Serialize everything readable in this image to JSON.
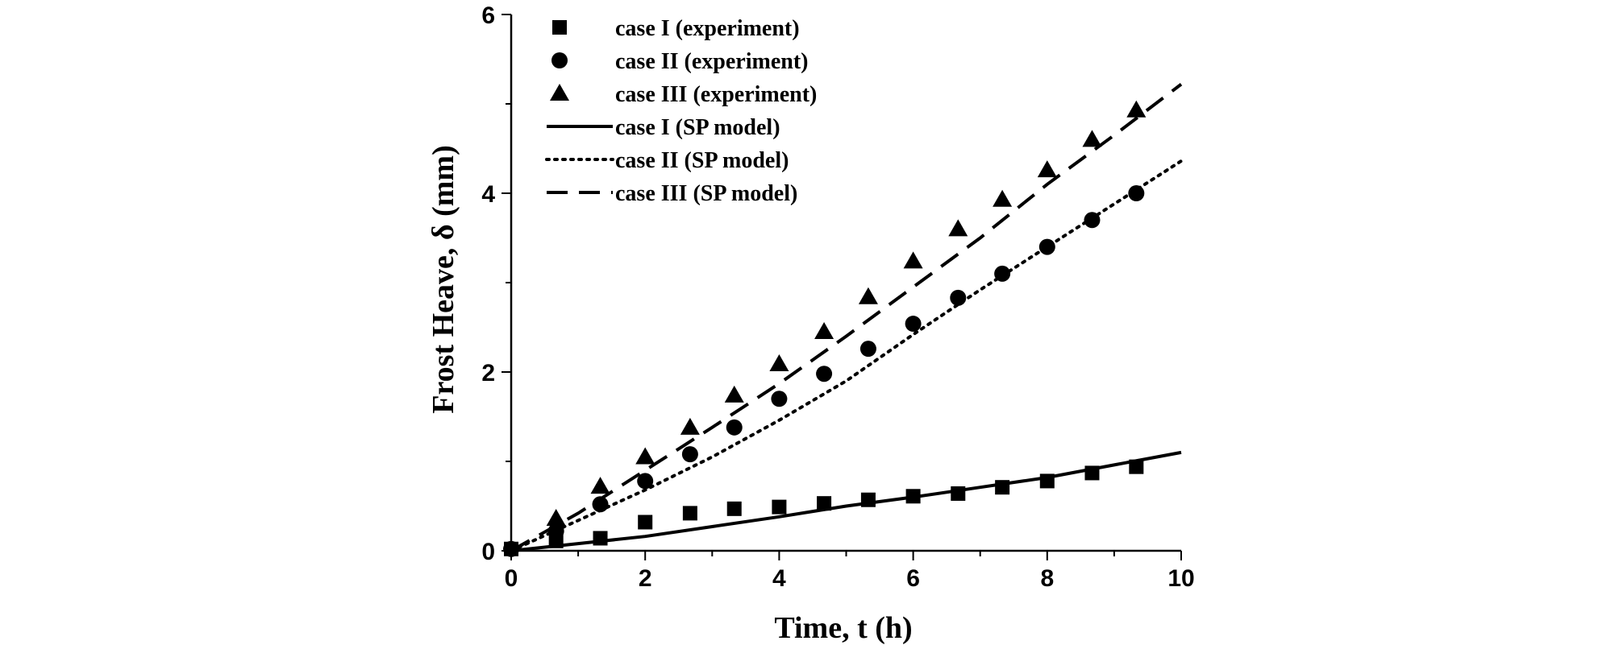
{
  "chart_data": {
    "type": "scatter",
    "title": "",
    "xlabel": "Time, t (h)",
    "ylabel": "Frost Heave, δ (mm)",
    "xlim": [
      0,
      10
    ],
    "ylim": [
      0,
      6
    ],
    "x_ticks": [
      0,
      2,
      4,
      6,
      8,
      10
    ],
    "y_ticks": [
      0,
      2,
      4,
      6
    ],
    "grid": false,
    "legend_position": "top-left",
    "experiments": [
      {
        "name": "case I   (experiment)",
        "marker": "square",
        "x": [
          0,
          0.67,
          1.33,
          2,
          2.67,
          3.33,
          4,
          4.67,
          5.33,
          6,
          6.67,
          7.33,
          8,
          8.67,
          9.33
        ],
        "y": [
          0.02,
          0.11,
          0.14,
          0.32,
          0.42,
          0.47,
          0.49,
          0.53,
          0.57,
          0.61,
          0.64,
          0.71,
          0.78,
          0.87,
          0.94
        ]
      },
      {
        "name": "case II  (experiment)",
        "marker": "circle",
        "x": [
          0,
          0.67,
          1.33,
          2,
          2.67,
          3.33,
          4,
          4.67,
          5.33,
          6,
          6.67,
          7.33,
          8,
          8.67,
          9.33
        ],
        "y": [
          0.02,
          0.22,
          0.52,
          0.78,
          1.08,
          1.38,
          1.7,
          1.98,
          2.26,
          2.54,
          2.83,
          3.1,
          3.4,
          3.7,
          4.0
        ]
      },
      {
        "name": "case III (experiment)",
        "marker": "triangle",
        "x": [
          0.67,
          1.33,
          2,
          2.67,
          3.33,
          4,
          4.67,
          5.33,
          6,
          6.67,
          7.33,
          8,
          8.67,
          9.33
        ],
        "y": [
          0.36,
          0.72,
          1.05,
          1.38,
          1.74,
          2.09,
          2.45,
          2.84,
          3.24,
          3.6,
          3.93,
          4.26,
          4.6,
          4.93
        ]
      }
    ],
    "models": [
      {
        "name": "case I   (SP model)",
        "style": "solid",
        "x": [
          0,
          1,
          2,
          3,
          4,
          5,
          6,
          7,
          8,
          9,
          10
        ],
        "y": [
          0,
          0.08,
          0.16,
          0.27,
          0.38,
          0.5,
          0.6,
          0.71,
          0.82,
          0.96,
          1.1
        ]
      },
      {
        "name": "case II  (SP model)",
        "style": "dotted",
        "x": [
          0,
          1,
          2,
          3,
          4,
          5,
          6,
          7,
          8,
          9,
          10
        ],
        "y": [
          0,
          0.34,
          0.68,
          1.05,
          1.46,
          1.9,
          2.42,
          2.92,
          3.4,
          3.88,
          4.36
        ]
      },
      {
        "name": "case III (SP model)",
        "style": "dashed",
        "x": [
          0,
          1,
          2,
          3,
          4,
          5,
          6,
          7,
          8,
          9,
          10
        ],
        "y": [
          0,
          0.42,
          0.9,
          1.38,
          1.87,
          2.4,
          2.95,
          3.5,
          4.1,
          4.65,
          5.22
        ]
      }
    ]
  }
}
